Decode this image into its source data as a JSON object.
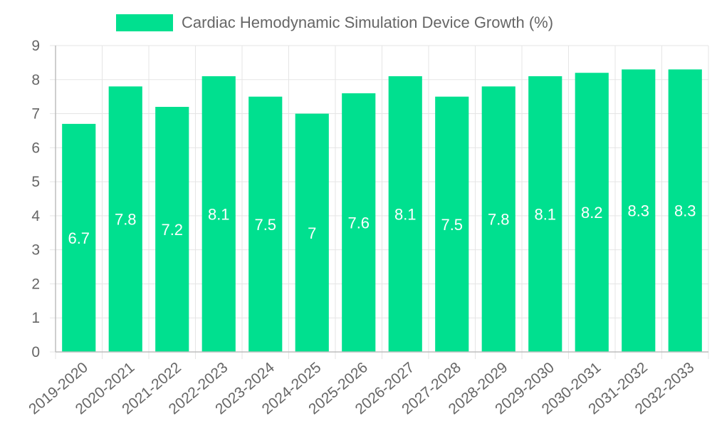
{
  "chart_data": {
    "type": "bar",
    "title": "",
    "legend": {
      "position": "top-center",
      "entries": [
        {
          "label": "Cardiac Hemodynamic Simulation Device Growth (%)",
          "color": "#00e08f"
        }
      ]
    },
    "categories": [
      "2019-2020",
      "2020-2021",
      "2021-2022",
      "2022-2023",
      "2023-2024",
      "2024-2025",
      "2025-2026",
      "2026-2027",
      "2027-2028",
      "2028-2029",
      "2029-2030",
      "2030-2031",
      "2031-2032",
      "2032-2033"
    ],
    "series": [
      {
        "name": "Cardiac Hemodynamic Simulation Device Growth (%)",
        "values": [
          6.7,
          7.8,
          7.2,
          8.1,
          7.5,
          7,
          7.6,
          8.1,
          7.5,
          7.8,
          8.1,
          8.2,
          8.3,
          8.3
        ],
        "labels": [
          "6.7",
          "7.8",
          "7.2",
          "8.1",
          "7.5",
          "7",
          "7.6",
          "8.1",
          "7.5",
          "7.8",
          "8.1",
          "8.2",
          "8.3",
          "8.3"
        ]
      }
    ],
    "xlabel": "",
    "ylabel": "",
    "ylim": [
      0,
      9
    ],
    "yticks": [
      "0",
      "1",
      "2",
      "3",
      "4",
      "5",
      "6",
      "7",
      "8",
      "9"
    ],
    "grid": true,
    "colors": {
      "bar": "#00e08f",
      "grid": "#e5e5e5",
      "axis": "#bdbdbd",
      "tick_text": "#666666",
      "data_label": "#ffffff",
      "legend_text": "#666666"
    }
  }
}
